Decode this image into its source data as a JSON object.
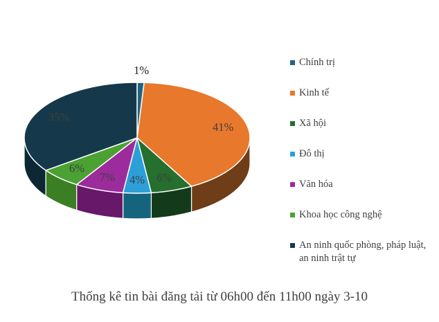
{
  "title": "Thống kê tin bài đăng tải từ 06h00 đến 11h00 ngày 3-10",
  "style": {
    "label_color": "#3F3F3F",
    "outside_label_color": "#1C1C1C",
    "separator_color": "#FFFFFF",
    "background": "#FFFFFF"
  },
  "chart_data": {
    "type": "pie",
    "variant": "3d",
    "start_angle_deg": 0,
    "direction": "clockwise",
    "legend_position": "right",
    "unit": "%",
    "grid": false,
    "title": "Thống kê tin bài đăng tải từ 06h00 đến 11h00 ngày 3-10",
    "series": [
      {
        "label": "Chính trị",
        "value": 1,
        "color": "#21647F",
        "side_color": "#12475E"
      },
      {
        "label": " Kinh tế",
        "value": 41,
        "color": "#E8782C",
        "side_color": "#6F3D17"
      },
      {
        "label": "Xã hội",
        "value": 6,
        "color": "#256F2F",
        "side_color": "#133B1B"
      },
      {
        "label": "Đô thị",
        "value": 4,
        "color": "#2C9FD9",
        "side_color": "#14647E"
      },
      {
        "label": "Văn hóa",
        "value": 7,
        "color": "#9C2B9C",
        "side_color": "#681868"
      },
      {
        "label": "Khoa học công nghệ",
        "value": 6,
        "color": "#4CA133",
        "side_color": "#3A7F23"
      },
      {
        "label": "An ninh quốc phòng, pháp luật, an ninh trật tự",
        "value": 35,
        "color": "#15394B",
        "side_color": "#0D2834"
      }
    ]
  }
}
